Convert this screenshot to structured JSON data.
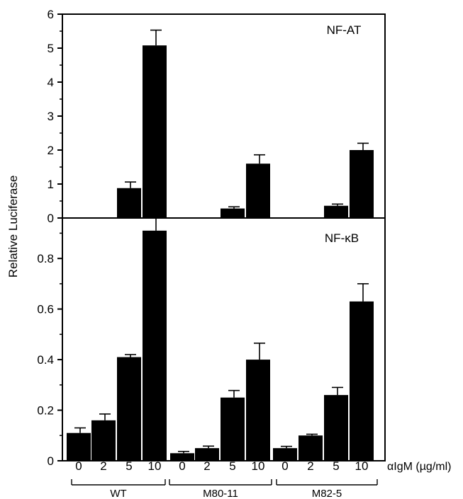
{
  "chart_data": {
    "type": "bar",
    "ylabel": "Relative Luciferase",
    "x_unit_label": "αIgM (µg/ml)",
    "categories": [
      "0",
      "2",
      "5",
      "10",
      "0",
      "2",
      "5",
      "10",
      "0",
      "2",
      "5",
      "10"
    ],
    "groups": [
      {
        "label": "WT",
        "categories": [
          "0",
          "2",
          "5",
          "10"
        ]
      },
      {
        "label": "M80-11",
        "categories": [
          "0",
          "2",
          "5",
          "10"
        ]
      },
      {
        "label": "M82-5",
        "categories": [
          "0",
          "2",
          "5",
          "10"
        ]
      }
    ],
    "panels": [
      {
        "title": "NF-AT",
        "ylim": [
          0,
          6
        ],
        "yticks": [
          "0",
          "1",
          "2",
          "3",
          "4",
          "5",
          "6"
        ],
        "values": [
          0,
          0.02,
          0.88,
          5.08,
          0,
          0,
          0.28,
          1.6,
          0,
          0.02,
          0.36,
          2.0
        ],
        "errors": [
          0,
          0,
          0.18,
          0.45,
          0,
          0,
          0.05,
          0.26,
          0,
          0,
          0.05,
          0.2
        ]
      },
      {
        "title": "NF-κB",
        "ylim": [
          0,
          0.96
        ],
        "yticks": [
          "0",
          "0.2",
          "0.4",
          "0.6",
          "0.8"
        ],
        "ytick_values": [
          0,
          0.2,
          0.4,
          0.6,
          0.8
        ],
        "values": [
          0.11,
          0.16,
          0.41,
          0.91,
          0.03,
          0.05,
          0.25,
          0.4,
          0.05,
          0.1,
          0.26,
          0.63
        ],
        "errors": [
          0.02,
          0.025,
          0.01,
          0.07,
          0.007,
          0.008,
          0.028,
          0.065,
          0.007,
          0.005,
          0.03,
          0.07
        ]
      }
    ]
  }
}
